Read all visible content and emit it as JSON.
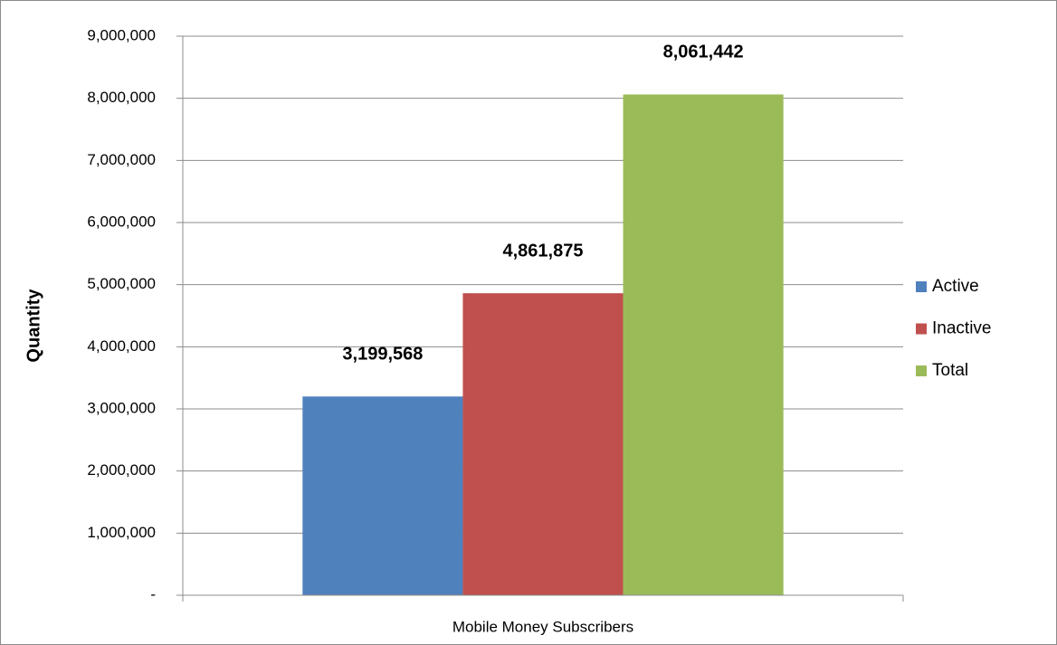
{
  "chart_data": {
    "type": "bar",
    "categories": [
      "Mobile Money Subscribers"
    ],
    "series": [
      {
        "name": "Active",
        "color": "#4f81bd",
        "values": [
          3199568
        ],
        "value_labels": [
          "3,199,568"
        ]
      },
      {
        "name": "Inactive",
        "color": "#c0504d",
        "values": [
          4861875
        ],
        "value_labels": [
          "4,861,875"
        ]
      },
      {
        "name": "Total",
        "color": "#9bbb59",
        "values": [
          8061442
        ],
        "value_labels": [
          "8,061,442"
        ]
      }
    ],
    "y_label": "Quantity",
    "ylim": [
      0,
      9000000
    ],
    "yticks": [
      {
        "value": 0,
        "label": "-"
      },
      {
        "value": 1000000,
        "label": "1,000,000"
      },
      {
        "value": 2000000,
        "label": "2,000,000"
      },
      {
        "value": 3000000,
        "label": "3,000,000"
      },
      {
        "value": 4000000,
        "label": "4,000,000"
      },
      {
        "value": 5000000,
        "label": "5,000,000"
      },
      {
        "value": 6000000,
        "label": "6,000,000"
      },
      {
        "value": 7000000,
        "label": "7,000,000"
      },
      {
        "value": 8000000,
        "label": "8,000,000"
      },
      {
        "value": 9000000,
        "label": "9,000,000"
      }
    ],
    "grid": true,
    "legend": "right"
  }
}
